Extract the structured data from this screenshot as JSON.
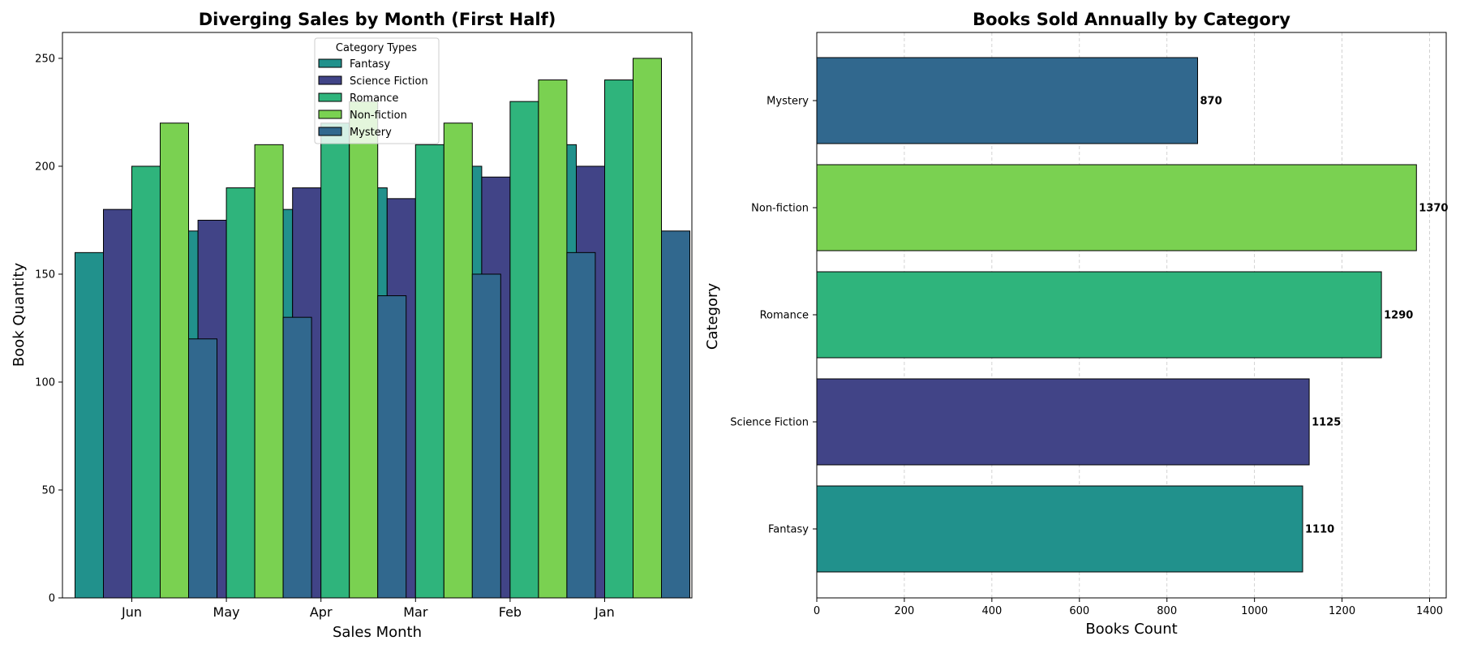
{
  "colors": {
    "Fantasy": "#21918c",
    "Science Fiction": "#414487",
    "Romance": "#2fb47c",
    "Non-fiction": "#7ad151",
    "Mystery": "#31688e"
  },
  "chart_data": [
    {
      "type": "bar",
      "title": "Diverging Sales by Month (First Half)",
      "xlabel": "Sales Month",
      "ylabel": "Book Quantity",
      "categories": [
        "Jun",
        "May",
        "Apr",
        "Mar",
        "Feb",
        "Jan"
      ],
      "ylim": [
        0,
        262
      ],
      "yticks": [
        0,
        50,
        100,
        150,
        200,
        250
      ],
      "legend_title": "Category Types",
      "legend_position": "top-center",
      "series": [
        {
          "name": "Fantasy",
          "values": [
            160,
            170,
            180,
            190,
            200,
            210
          ]
        },
        {
          "name": "Science Fiction",
          "values": [
            180,
            175,
            190,
            185,
            195,
            200
          ]
        },
        {
          "name": "Romance",
          "values": [
            200,
            190,
            220,
            210,
            230,
            240
          ]
        },
        {
          "name": "Non-fiction",
          "values": [
            220,
            210,
            230,
            220,
            240,
            250
          ]
        },
        {
          "name": "Mystery",
          "values": [
            120,
            130,
            140,
            150,
            160,
            170
          ]
        }
      ]
    },
    {
      "type": "barh",
      "title": "Books Sold Annually by Category",
      "xlabel": "Books Count",
      "ylabel": "Category",
      "categories": [
        "Fantasy",
        "Science Fiction",
        "Romance",
        "Non-fiction",
        "Mystery"
      ],
      "values": [
        1110,
        1125,
        1290,
        1370,
        870
      ],
      "value_labels": [
        "1110",
        "1125",
        "1290",
        "1370",
        "870"
      ],
      "xlim": [
        0,
        1438
      ],
      "xticks": [
        0,
        200,
        400,
        600,
        800,
        1000,
        1200,
        1400
      ],
      "grid": "x-dashed"
    }
  ]
}
